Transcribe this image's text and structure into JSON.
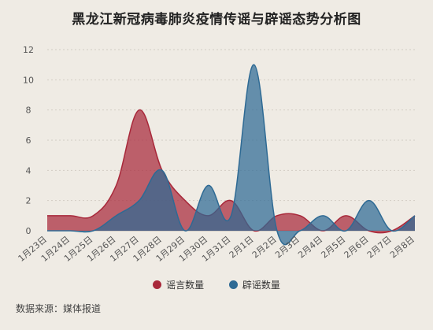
{
  "title": "黑龙江新冠病毒肺炎疫情传谣与辟谣态势分析图",
  "source": "数据来源：媒体报道",
  "colors": {
    "rumor": "#a8283a",
    "debunk": "#2e6a94"
  },
  "chart_data": {
    "type": "area",
    "categories": [
      "1月23日",
      "1月24日",
      "1月25日",
      "1月26日",
      "1月27日",
      "1月28日",
      "1月29日",
      "1月30日",
      "1月31日",
      "2月1日",
      "2月2日",
      "2月3日",
      "2月4日",
      "2月5日",
      "2月6日",
      "2月7日",
      "2月8日"
    ],
    "series": [
      {
        "name": "谣言数量",
        "values": [
          1,
          1,
          1,
          3,
          8,
          4,
          2,
          1,
          2,
          0,
          1,
          1,
          0,
          1,
          0,
          0,
          1
        ]
      },
      {
        "name": "辟谣数量",
        "values": [
          0,
          0,
          0,
          1,
          2,
          4,
          0,
          3,
          1,
          11,
          0,
          0,
          1,
          0,
          2,
          0,
          1
        ]
      }
    ],
    "yticks": [
      0,
      2,
      4,
      6,
      8,
      10,
      12
    ],
    "ylim": [
      0,
      12
    ],
    "grid": true,
    "legend": "bottom"
  }
}
